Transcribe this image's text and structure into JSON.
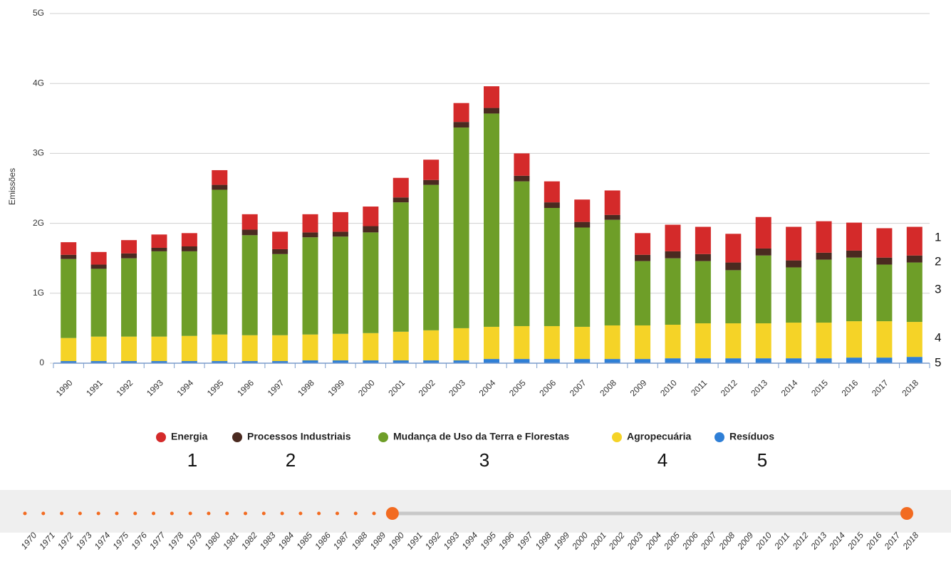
{
  "chart_data": {
    "type": "stacked_bar",
    "y_label": "Emissões",
    "ylim": [
      0,
      5
    ],
    "yticks": [
      0,
      {
        "value": 1,
        "label": "1G"
      },
      {
        "value": 2,
        "label": "2G"
      },
      {
        "value": 3,
        "label": "3G"
      },
      {
        "value": 4,
        "label": "4G"
      },
      {
        "value": 5,
        "label": "5G"
      }
    ],
    "grid": true,
    "legend": "bottom",
    "categories": [
      "1990",
      "1991",
      "1992",
      "1993",
      "1994",
      "1995",
      "1996",
      "1997",
      "1998",
      "1999",
      "2000",
      "2001",
      "2002",
      "2003",
      "2004",
      "2005",
      "2006",
      "2007",
      "2008",
      "2009",
      "2010",
      "2011",
      "2012",
      "2013",
      "2014",
      "2015",
      "2016",
      "2017",
      "2018"
    ],
    "series": [
      {
        "name": "Energia",
        "color": "#d42a2a",
        "values": [
          0.18,
          0.18,
          0.19,
          0.19,
          0.19,
          0.21,
          0.22,
          0.25,
          0.26,
          0.28,
          0.28,
          0.28,
          0.29,
          0.27,
          0.31,
          0.32,
          0.3,
          0.32,
          0.35,
          0.31,
          0.38,
          0.39,
          0.41,
          0.45,
          0.48,
          0.45,
          0.4,
          0.42,
          0.41
        ]
      },
      {
        "name": "Processos Industriais",
        "color": "#4a2a20",
        "values": [
          0.06,
          0.06,
          0.07,
          0.05,
          0.07,
          0.07,
          0.08,
          0.07,
          0.07,
          0.07,
          0.09,
          0.07,
          0.07,
          0.08,
          0.08,
          0.08,
          0.08,
          0.08,
          0.07,
          0.09,
          0.1,
          0.1,
          0.11,
          0.1,
          0.1,
          0.1,
          0.1,
          0.1,
          0.1
        ]
      },
      {
        "name": "Mudança de Uso da Terra e Florestas",
        "color": "#6e9e28",
        "values": [
          1.13,
          0.97,
          1.12,
          1.22,
          1.21,
          2.07,
          1.43,
          1.16,
          1.39,
          1.39,
          1.44,
          1.85,
          2.08,
          2.87,
          3.05,
          2.07,
          1.69,
          1.42,
          1.51,
          0.92,
          0.95,
          0.89,
          0.76,
          0.97,
          0.79,
          0.9,
          0.91,
          0.81,
          0.85
        ]
      },
      {
        "name": "Agropecuária",
        "color": "#f5d327",
        "values": [
          0.33,
          0.35,
          0.35,
          0.35,
          0.36,
          0.38,
          0.37,
          0.37,
          0.37,
          0.38,
          0.39,
          0.41,
          0.43,
          0.46,
          0.46,
          0.47,
          0.47,
          0.46,
          0.48,
          0.48,
          0.48,
          0.5,
          0.5,
          0.5,
          0.51,
          0.51,
          0.52,
          0.52,
          0.5
        ]
      },
      {
        "name": "Resíduos",
        "color": "#2f7fd6",
        "values": [
          0.03,
          0.03,
          0.03,
          0.03,
          0.03,
          0.03,
          0.03,
          0.03,
          0.04,
          0.04,
          0.04,
          0.04,
          0.04,
          0.04,
          0.06,
          0.06,
          0.06,
          0.06,
          0.06,
          0.06,
          0.07,
          0.07,
          0.07,
          0.07,
          0.07,
          0.07,
          0.08,
          0.08,
          0.09
        ]
      }
    ],
    "annotations": [
      "1",
      "2",
      "3",
      "4",
      "5"
    ],
    "range_selector": {
      "years": [
        1970,
        1971,
        1972,
        1973,
        1974,
        1975,
        1976,
        1977,
        1978,
        1979,
        1980,
        1981,
        1982,
        1983,
        1984,
        1985,
        1986,
        1987,
        1988,
        1989,
        1990,
        1991,
        1992,
        1993,
        1994,
        1995,
        1996,
        1997,
        1998,
        1999,
        2000,
        2001,
        2002,
        2003,
        2004,
        2005,
        2006,
        2007,
        2008,
        2009,
        2010,
        2011,
        2012,
        2013,
        2014,
        2015,
        2016,
        2017,
        2018
      ],
      "range": [
        1990,
        2018
      ],
      "color": "#f26b21"
    }
  }
}
